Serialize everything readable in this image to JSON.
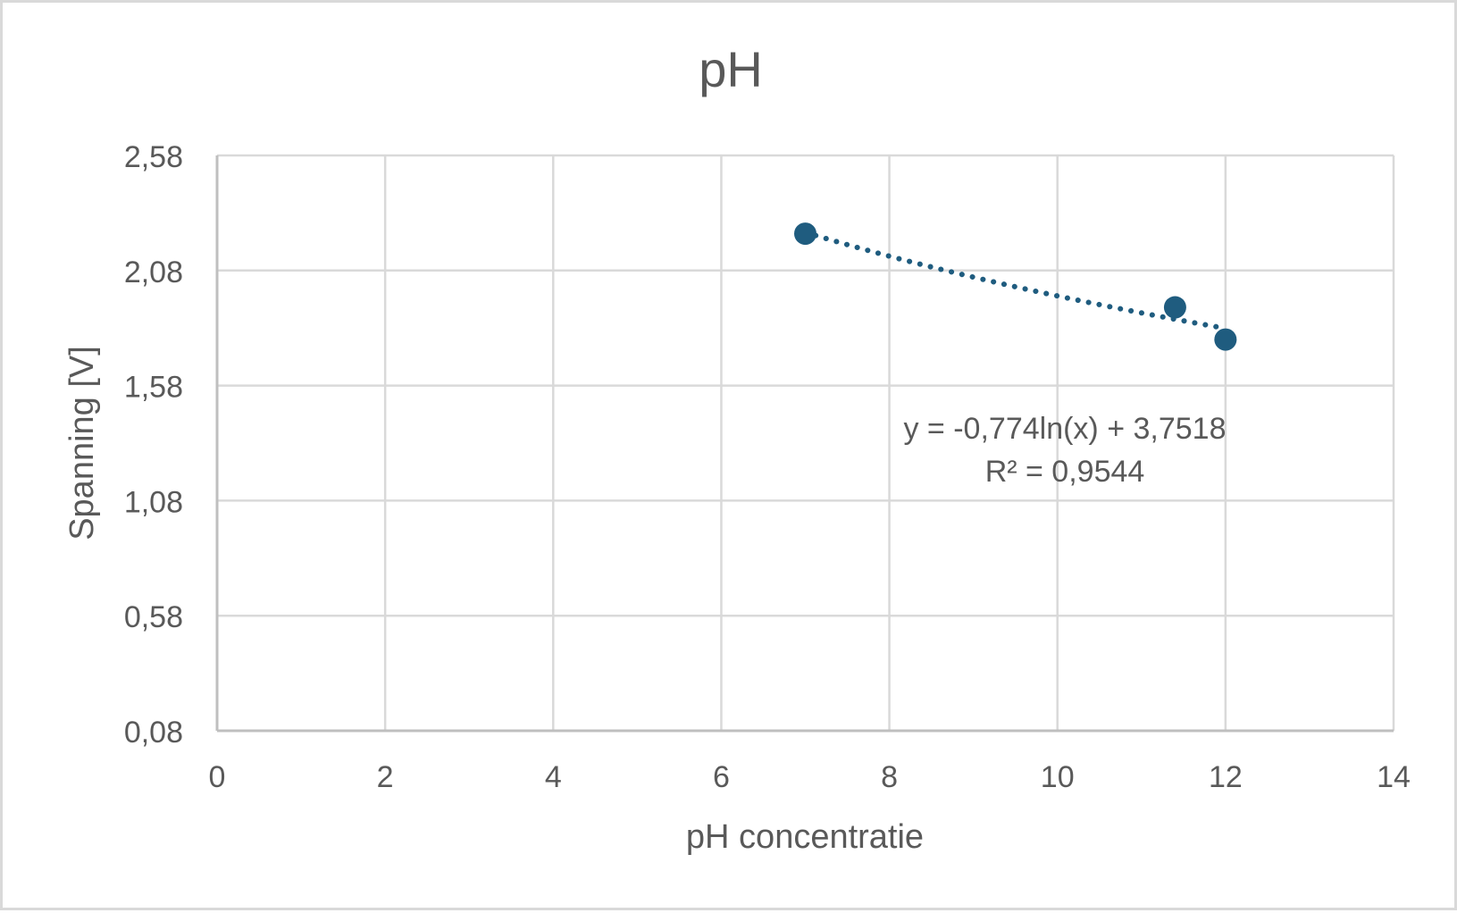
{
  "chart_data": {
    "type": "scatter",
    "title": "pH",
    "xlabel": "pH concentratie",
    "ylabel": "Spanning [V]",
    "xlim": [
      0,
      14
    ],
    "ylim": [
      0.08,
      2.58
    ],
    "x_ticks": [
      0,
      2,
      4,
      6,
      8,
      10,
      12,
      14
    ],
    "x_tick_labels": [
      "0",
      "2",
      "4",
      "6",
      "8",
      "10",
      "12",
      "14"
    ],
    "y_ticks": [
      0.08,
      0.58,
      1.08,
      1.58,
      2.08,
      2.58
    ],
    "y_tick_labels": [
      "0,08",
      "0,58",
      "1,08",
      "1,58",
      "2,08",
      "2,58"
    ],
    "grid": true,
    "legend": "none",
    "series": [
      {
        "color": "#1f5c7f",
        "x": [
          7,
          11.4,
          12
        ],
        "y": [
          2.24,
          1.92,
          1.78
        ]
      }
    ],
    "trendline": {
      "type": "logarithmic",
      "a": -0.774,
      "b": 3.7518,
      "x_range": [
        7,
        12
      ],
      "style": "dotted",
      "color": "#1f5c7f",
      "equation_label": "y = -0,774ln(x) + 3,7518",
      "r2_label": "R² = 0,9544"
    }
  }
}
